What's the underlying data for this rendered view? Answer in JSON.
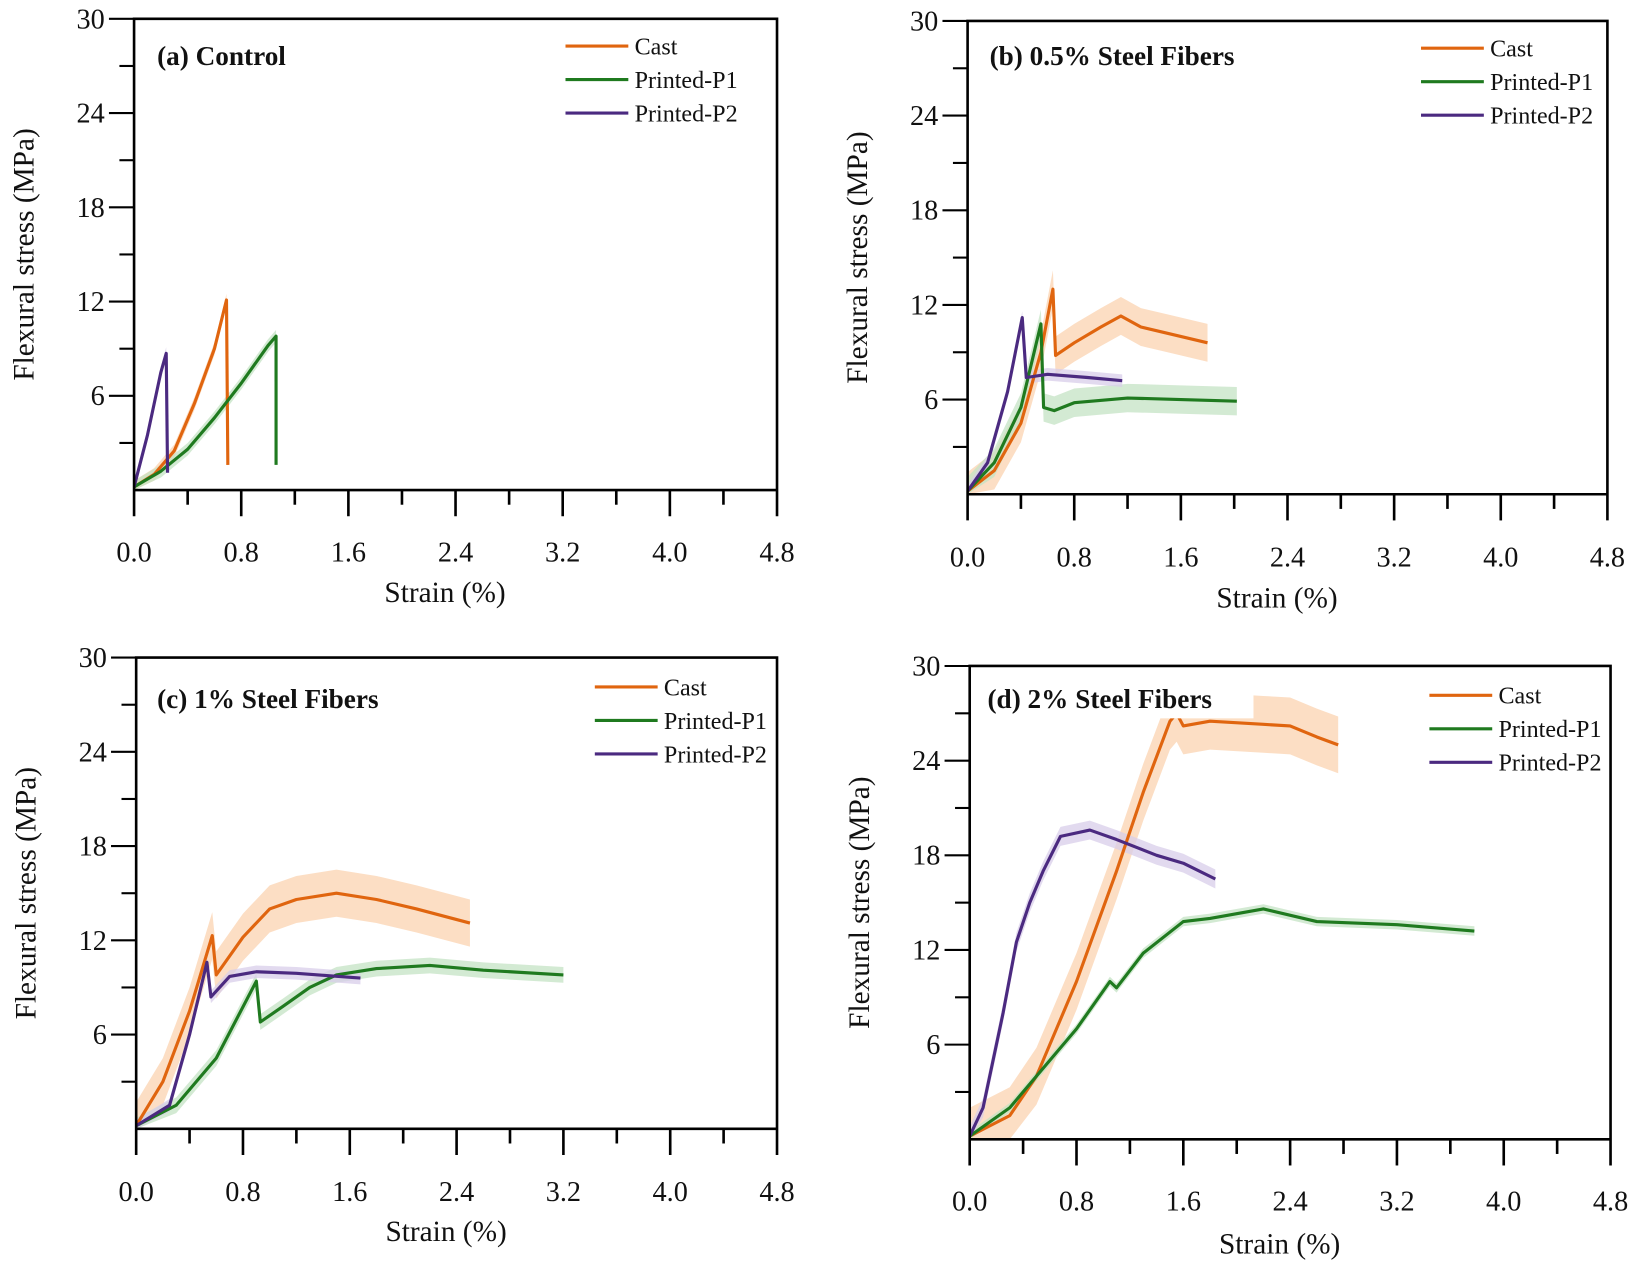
{
  "chart_data": [
    {
      "type": "line",
      "title": "(a) Control",
      "xlabel": "Strain (%)",
      "ylabel": "Flexural stress (MPa)",
      "xlim": [
        0,
        4.8
      ],
      "ylim": [
        0,
        30
      ],
      "x_ticks": [
        "0.0",
        "0.8",
        "1.6",
        "2.4",
        "3.2",
        "4.0",
        "4.8"
      ],
      "y_ticks": [
        "6",
        "12",
        "18",
        "24",
        "30"
      ],
      "grid": false,
      "legend": "top-right",
      "series": [
        {
          "name": "Cast",
          "color": "#e0650f",
          "band_color": "#fbd3b0",
          "band": 0.4,
          "points": [
            [
              0,
              0.2
            ],
            [
              0.15,
              1
            ],
            [
              0.3,
              2.5
            ],
            [
              0.45,
              5.5
            ],
            [
              0.6,
              9
            ],
            [
              0.69,
              12.1
            ],
            [
              0.7,
              1.6
            ]
          ]
        },
        {
          "name": "Printed-P1",
          "color": "#1f7a1f",
          "band_color": "#c4e3c4",
          "band": 0.4,
          "points": [
            [
              0,
              0.2
            ],
            [
              0.2,
              1.2
            ],
            [
              0.4,
              2.6
            ],
            [
              0.6,
              4.6
            ],
            [
              0.8,
              6.8
            ],
            [
              1.0,
              9.2
            ],
            [
              1.06,
              9.8
            ],
            [
              1.06,
              1.6
            ]
          ]
        },
        {
          "name": "Printed-P2",
          "color": "#4b2a80",
          "band_color": "#d8cdea",
          "band": 0.4,
          "points": [
            [
              0,
              0.2
            ],
            [
              0.1,
              3.5
            ],
            [
              0.2,
              7.5
            ],
            [
              0.24,
              8.7
            ],
            [
              0.25,
              1.1
            ]
          ]
        }
      ]
    },
    {
      "type": "line",
      "title": "(b) 0.5% Steel Fibers",
      "xlabel": "Strain (%)",
      "ylabel": "Flexural stress (MPa)",
      "xlim": [
        0,
        4.8
      ],
      "ylim": [
        0,
        30
      ],
      "x_ticks": [
        "0.0",
        "0.8",
        "1.6",
        "2.4",
        "3.2",
        "4.0",
        "4.8"
      ],
      "y_ticks": [
        "6",
        "12",
        "18",
        "24",
        "30"
      ],
      "grid": false,
      "legend": "top-right",
      "series": [
        {
          "name": "Cast",
          "color": "#e0650f",
          "band_color": "#fbd3b0",
          "band": 1.2,
          "points": [
            [
              0,
              0.2
            ],
            [
              0.2,
              1.5
            ],
            [
              0.4,
              4.5
            ],
            [
              0.55,
              9
            ],
            [
              0.64,
              13
            ],
            [
              0.66,
              8.8
            ],
            [
              0.8,
              9.6
            ],
            [
              1.0,
              10.6
            ],
            [
              1.15,
              11.3
            ],
            [
              1.3,
              10.6
            ],
            [
              1.5,
              10.2
            ],
            [
              1.8,
              9.6
            ]
          ]
        },
        {
          "name": "Printed-P1",
          "color": "#1f7a1f",
          "band_color": "#c4e3c4",
          "band": 0.9,
          "points": [
            [
              0,
              0.2
            ],
            [
              0.2,
              2
            ],
            [
              0.4,
              5.5
            ],
            [
              0.55,
              10.8
            ],
            [
              0.57,
              5.5
            ],
            [
              0.65,
              5.3
            ],
            [
              0.8,
              5.8
            ],
            [
              1.2,
              6.1
            ],
            [
              1.6,
              6.0
            ],
            [
              2.02,
              5.9
            ]
          ]
        },
        {
          "name": "Printed-P2",
          "color": "#4b2a80",
          "band_color": "#d8cdea",
          "band": 0.4,
          "points": [
            [
              0,
              0.2
            ],
            [
              0.15,
              2
            ],
            [
              0.3,
              6.5
            ],
            [
              0.41,
              11.2
            ],
            [
              0.44,
              7.4
            ],
            [
              0.6,
              7.6
            ],
            [
              0.9,
              7.4
            ],
            [
              1.16,
              7.2
            ]
          ]
        }
      ]
    },
    {
      "type": "line",
      "title": "(c) 1% Steel Fibers",
      "xlabel": "Strain (%)",
      "ylabel": "Flexural stress (MPa)",
      "xlim": [
        0,
        4.8
      ],
      "ylim": [
        0,
        30
      ],
      "x_ticks": [
        "0.0",
        "0.8",
        "1.6",
        "2.4",
        "3.2",
        "4.0",
        "4.8"
      ],
      "y_ticks": [
        "6",
        "12",
        "18",
        "24",
        "30"
      ],
      "grid": false,
      "legend": "top-right",
      "series": [
        {
          "name": "Cast",
          "color": "#e0650f",
          "band_color": "#fbd3b0",
          "band": 1.5,
          "points": [
            [
              0,
              0.2
            ],
            [
              0.2,
              3
            ],
            [
              0.4,
              7.5
            ],
            [
              0.57,
              12.3
            ],
            [
              0.6,
              9.8
            ],
            [
              0.8,
              12.2
            ],
            [
              1.0,
              14
            ],
            [
              1.2,
              14.6
            ],
            [
              1.5,
              15
            ],
            [
              1.8,
              14.6
            ],
            [
              2.1,
              14
            ],
            [
              2.5,
              13.1
            ]
          ]
        },
        {
          "name": "Printed-P1",
          "color": "#1f7a1f",
          "band_color": "#c4e3c4",
          "band": 0.5,
          "points": [
            [
              0,
              0.2
            ],
            [
              0.3,
              1.5
            ],
            [
              0.6,
              4.5
            ],
            [
              0.9,
              9.4
            ],
            [
              0.93,
              6.8
            ],
            [
              1.1,
              7.8
            ],
            [
              1.3,
              9.0
            ],
            [
              1.5,
              9.8
            ],
            [
              1.8,
              10.2
            ],
            [
              2.2,
              10.4
            ],
            [
              2.6,
              10.1
            ],
            [
              3.2,
              9.8
            ]
          ]
        },
        {
          "name": "Printed-P2",
          "color": "#4b2a80",
          "band_color": "#d8cdea",
          "band": 0.4,
          "points": [
            [
              0,
              0.2
            ],
            [
              0.25,
              1.5
            ],
            [
              0.4,
              6
            ],
            [
              0.53,
              10.6
            ],
            [
              0.56,
              8.4
            ],
            [
              0.7,
              9.7
            ],
            [
              0.9,
              10
            ],
            [
              1.2,
              9.9
            ],
            [
              1.68,
              9.6
            ]
          ]
        }
      ]
    },
    {
      "type": "line",
      "title": "(d) 2% Steel Fibers",
      "xlabel": "Strain (%)",
      "ylabel": "Flexural stress (MPa)",
      "xlim": [
        0,
        4.8
      ],
      "ylim": [
        0,
        30
      ],
      "x_ticks": [
        "0.0",
        "0.8",
        "1.6",
        "2.4",
        "3.2",
        "4.0",
        "4.8"
      ],
      "y_ticks": [
        "6",
        "12",
        "18",
        "24",
        "30"
      ],
      "grid": false,
      "legend": "top-right",
      "series": [
        {
          "name": "Cast",
          "color": "#e0650f",
          "band_color": "#fbd3b0",
          "band": 1.8,
          "points": [
            [
              0,
              0.2
            ],
            [
              0.3,
              1.5
            ],
            [
              0.5,
              4
            ],
            [
              0.8,
              10
            ],
            [
              1.1,
              17
            ],
            [
              1.3,
              22
            ],
            [
              1.5,
              26.5
            ],
            [
              1.55,
              27
            ],
            [
              1.6,
              26.2
            ],
            [
              1.8,
              26.5
            ],
            [
              2.2,
              26.3
            ],
            [
              2.4,
              26.2
            ],
            [
              2.6,
              25.5
            ],
            [
              2.76,
              25
            ]
          ]
        },
        {
          "name": "Printed-P1",
          "color": "#1f7a1f",
          "band_color": "#c4e3c4",
          "band": 0.3,
          "points": [
            [
              0,
              0.2
            ],
            [
              0.3,
              2
            ],
            [
              0.6,
              5
            ],
            [
              0.8,
              7
            ],
            [
              1.05,
              10
            ],
            [
              1.1,
              9.6
            ],
            [
              1.3,
              11.8
            ],
            [
              1.6,
              13.8
            ],
            [
              1.8,
              14
            ],
            [
              2.2,
              14.6
            ],
            [
              2.6,
              13.8
            ],
            [
              3.2,
              13.6
            ],
            [
              3.78,
              13.2
            ]
          ]
        },
        {
          "name": "Printed-P2",
          "color": "#4b2a80",
          "band_color": "#d8cdea",
          "band": 0.6,
          "points": [
            [
              0,
              0.2
            ],
            [
              0.1,
              2
            ],
            [
              0.25,
              8
            ],
            [
              0.35,
              12.5
            ],
            [
              0.45,
              15
            ],
            [
              0.55,
              17
            ],
            [
              0.68,
              19.2
            ],
            [
              0.9,
              19.6
            ],
            [
              1.1,
              19
            ],
            [
              1.4,
              18
            ],
            [
              1.6,
              17.5
            ],
            [
              1.84,
              16.5
            ]
          ]
        }
      ]
    }
  ]
}
